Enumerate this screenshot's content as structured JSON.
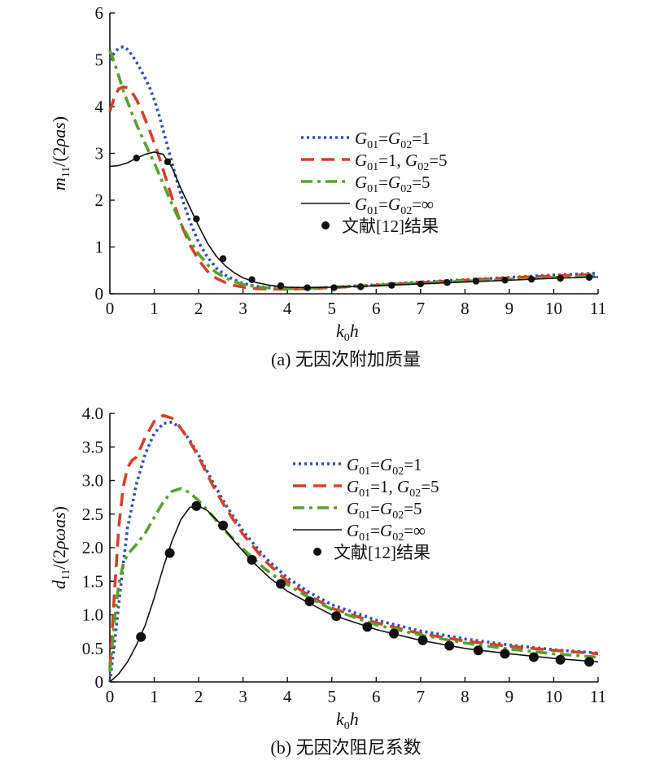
{
  "chart_data": [
    {
      "type": "line",
      "caption": "(a) 无因次附加质量",
      "xlabel": "k0h",
      "ylabel": "m11/(2ρas)",
      "xlim": [
        0,
        11
      ],
      "ylim": [
        0,
        6
      ],
      "x_ticks": [
        "0",
        "1",
        "2",
        "3",
        "4",
        "5",
        "6",
        "7",
        "8",
        "9",
        "10",
        "11"
      ],
      "y_ticks": [
        "0",
        "1",
        "2",
        "3",
        "4",
        "5",
        "6"
      ],
      "legend_position": "right",
      "series": [
        {
          "name": "G01=G02=1",
          "style": "dotted",
          "color": "#2e4fb8",
          "x": [
            0,
            0.1,
            0.2,
            0.3,
            0.4,
            0.5,
            0.6,
            0.7,
            0.8,
            0.9,
            1.0,
            1.1,
            1.2,
            1.3,
            1.4,
            1.5,
            1.6,
            1.8,
            2.0,
            2.2,
            2.4,
            2.6,
            2.8,
            3.0,
            3.3,
            3.6,
            4.0,
            4.5,
            5,
            6,
            7,
            8,
            9,
            10,
            11
          ],
          "y": [
            5.0,
            5.15,
            5.25,
            5.28,
            5.22,
            5.1,
            4.95,
            4.78,
            4.6,
            4.4,
            4.15,
            3.85,
            3.5,
            3.15,
            2.8,
            2.45,
            2.12,
            1.55,
            1.1,
            0.78,
            0.55,
            0.4,
            0.3,
            0.22,
            0.16,
            0.13,
            0.12,
            0.12,
            0.14,
            0.19,
            0.25,
            0.3,
            0.35,
            0.4,
            0.44
          ]
        },
        {
          "name": "G01=1, G02=5",
          "style": "dashed",
          "color": "#d6402a",
          "x": [
            0,
            0.1,
            0.2,
            0.3,
            0.4,
            0.5,
            0.6,
            0.7,
            0.8,
            0.9,
            1.0,
            1.1,
            1.2,
            1.3,
            1.4,
            1.6,
            1.8,
            2.0,
            2.2,
            2.4,
            2.6,
            2.8,
            3.0,
            3.3,
            3.6,
            4.0,
            4.5,
            5,
            6,
            7,
            8,
            9,
            10,
            11
          ],
          "y": [
            3.9,
            4.2,
            4.38,
            4.42,
            4.4,
            4.3,
            4.15,
            3.95,
            3.72,
            3.48,
            3.22,
            2.95,
            2.65,
            2.35,
            2.05,
            1.5,
            1.05,
            0.72,
            0.48,
            0.33,
            0.24,
            0.18,
            0.14,
            0.11,
            0.1,
            0.1,
            0.11,
            0.13,
            0.18,
            0.24,
            0.29,
            0.34,
            0.38,
            0.42
          ]
        },
        {
          "name": "G01=G02=5",
          "style": "dashdot",
          "color": "#5aa02c",
          "x": [
            0,
            0.1,
            0.2,
            0.3,
            0.4,
            0.5,
            0.6,
            0.8,
            1.0,
            1.2,
            1.4,
            1.6,
            1.8,
            2.0,
            2.2,
            2.4,
            2.6,
            2.8,
            3.0,
            3.3,
            3.6,
            4.0,
            4.5,
            5,
            6,
            7,
            8,
            9,
            10,
            11
          ],
          "y": [
            5.2,
            4.95,
            4.65,
            4.35,
            4.1,
            3.85,
            3.62,
            3.2,
            2.8,
            2.35,
            1.92,
            1.5,
            1.15,
            0.85,
            0.62,
            0.45,
            0.34,
            0.26,
            0.2,
            0.15,
            0.12,
            0.11,
            0.12,
            0.14,
            0.18,
            0.23,
            0.27,
            0.31,
            0.35,
            0.38
          ]
        },
        {
          "name": "G01=G02=∞",
          "style": "solid",
          "color": "#111111",
          "x": [
            0,
            0.2,
            0.4,
            0.6,
            0.8,
            1.0,
            1.2,
            1.4,
            1.6,
            1.8,
            2.0,
            2.2,
            2.4,
            2.6,
            2.8,
            3.0,
            3.3,
            3.6,
            4.0,
            4.5,
            5,
            6,
            7,
            8,
            9,
            10,
            11
          ],
          "y": [
            2.72,
            2.74,
            2.8,
            2.9,
            2.98,
            3.03,
            2.98,
            2.7,
            2.25,
            1.85,
            1.45,
            1.08,
            0.8,
            0.6,
            0.45,
            0.34,
            0.24,
            0.18,
            0.14,
            0.13,
            0.14,
            0.17,
            0.21,
            0.25,
            0.29,
            0.33,
            0.36
          ]
        },
        {
          "name": "文献[12]结果",
          "style": "markers",
          "color": "#111111",
          "x": [
            0.6,
            1.3,
            1.95,
            2.55,
            3.2,
            3.85,
            4.45,
            5.05,
            5.65,
            6.35,
            7.0,
            7.6,
            8.25,
            8.9,
            9.5,
            10.15,
            10.8
          ],
          "y": [
            2.9,
            2.82,
            1.6,
            0.75,
            0.3,
            0.17,
            0.13,
            0.13,
            0.15,
            0.18,
            0.21,
            0.24,
            0.27,
            0.29,
            0.31,
            0.33,
            0.35
          ]
        }
      ]
    },
    {
      "type": "line",
      "caption": "(b) 无因次阻尼系数",
      "xlabel": "k0h",
      "ylabel": "d11/(2ρωas)",
      "xlim": [
        0,
        11
      ],
      "ylim": [
        0,
        4.0
      ],
      "x_ticks": [
        "0",
        "1",
        "2",
        "3",
        "4",
        "5",
        "6",
        "7",
        "8",
        "9",
        "10",
        "11"
      ],
      "y_ticks": [
        "0",
        "0.5",
        "1.0",
        "1.5",
        "2.0",
        "2.5",
        "3.0",
        "3.5",
        "4.0"
      ],
      "legend_position": "right",
      "series": [
        {
          "name": "G01=G02=1",
          "style": "dotted",
          "color": "#2e4fb8",
          "x": [
            0,
            0.1,
            0.2,
            0.3,
            0.4,
            0.6,
            0.8,
            1.0,
            1.2,
            1.4,
            1.6,
            1.8,
            2.0,
            2.3,
            2.6,
            3.0,
            3.5,
            4,
            4.5,
            5,
            6,
            7,
            8,
            9,
            10,
            11
          ],
          "y": [
            0,
            0.55,
            1.15,
            1.75,
            2.3,
            2.95,
            3.4,
            3.7,
            3.85,
            3.87,
            3.78,
            3.6,
            3.38,
            3.0,
            2.65,
            2.25,
            1.85,
            1.55,
            1.33,
            1.15,
            0.92,
            0.76,
            0.64,
            0.55,
            0.48,
            0.43
          ]
        },
        {
          "name": "G01=1, G02=5",
          "style": "dashed",
          "color": "#d6402a",
          "x": [
            0,
            0.1,
            0.2,
            0.3,
            0.4,
            0.5,
            0.6,
            0.7,
            0.8,
            1.0,
            1.2,
            1.4,
            1.6,
            1.8,
            2.0,
            2.3,
            2.6,
            3.0,
            3.5,
            4,
            4.5,
            5,
            6,
            7,
            8,
            9,
            10,
            11
          ],
          "y": [
            0.2,
            1.3,
            2.3,
            2.9,
            3.2,
            3.3,
            3.35,
            3.5,
            3.65,
            3.88,
            3.97,
            3.93,
            3.78,
            3.58,
            3.35,
            2.95,
            2.6,
            2.2,
            1.8,
            1.5,
            1.28,
            1.1,
            0.88,
            0.72,
            0.61,
            0.53,
            0.47,
            0.42
          ]
        },
        {
          "name": "G01=G02=5",
          "style": "dashdot",
          "color": "#5aa02c",
          "x": [
            0,
            0.1,
            0.2,
            0.3,
            0.4,
            0.6,
            0.8,
            1.0,
            1.2,
            1.4,
            1.6,
            1.8,
            2.0,
            2.3,
            2.6,
            3.0,
            3.5,
            4,
            4.5,
            5,
            6,
            7,
            8,
            9,
            10,
            11
          ],
          "y": [
            0.15,
            0.9,
            1.45,
            1.75,
            1.9,
            2.05,
            2.22,
            2.45,
            2.68,
            2.84,
            2.88,
            2.82,
            2.7,
            2.48,
            2.25,
            1.98,
            1.68,
            1.45,
            1.25,
            1.08,
            0.85,
            0.7,
            0.58,
            0.49,
            0.42,
            0.37
          ]
        },
        {
          "name": "G01=G02=∞",
          "style": "solid",
          "color": "#111111",
          "x": [
            0,
            0.2,
            0.4,
            0.6,
            0.8,
            1.0,
            1.2,
            1.4,
            1.6,
            1.8,
            2.0,
            2.2,
            2.5,
            2.8,
            3.2,
            3.6,
            4,
            4.5,
            5,
            6,
            7,
            8,
            9,
            10,
            11
          ],
          "y": [
            0,
            0.12,
            0.3,
            0.55,
            0.85,
            1.25,
            1.7,
            2.1,
            2.42,
            2.6,
            2.62,
            2.55,
            2.35,
            2.1,
            1.8,
            1.55,
            1.35,
            1.17,
            1.0,
            0.78,
            0.62,
            0.5,
            0.42,
            0.35,
            0.3
          ]
        },
        {
          "name": "文献[12]结果",
          "style": "markers",
          "color": "#111111",
          "x": [
            0.7,
            1.35,
            1.95,
            2.55,
            3.2,
            3.85,
            4.5,
            5.1,
            5.8,
            6.4,
            7.05,
            7.65,
            8.3,
            8.9,
            9.55,
            10.15,
            10.8
          ],
          "y": [
            0.67,
            1.92,
            2.62,
            2.33,
            1.82,
            1.46,
            1.2,
            0.98,
            0.82,
            0.72,
            0.62,
            0.54,
            0.47,
            0.42,
            0.37,
            0.33,
            0.3
          ]
        }
      ]
    }
  ]
}
